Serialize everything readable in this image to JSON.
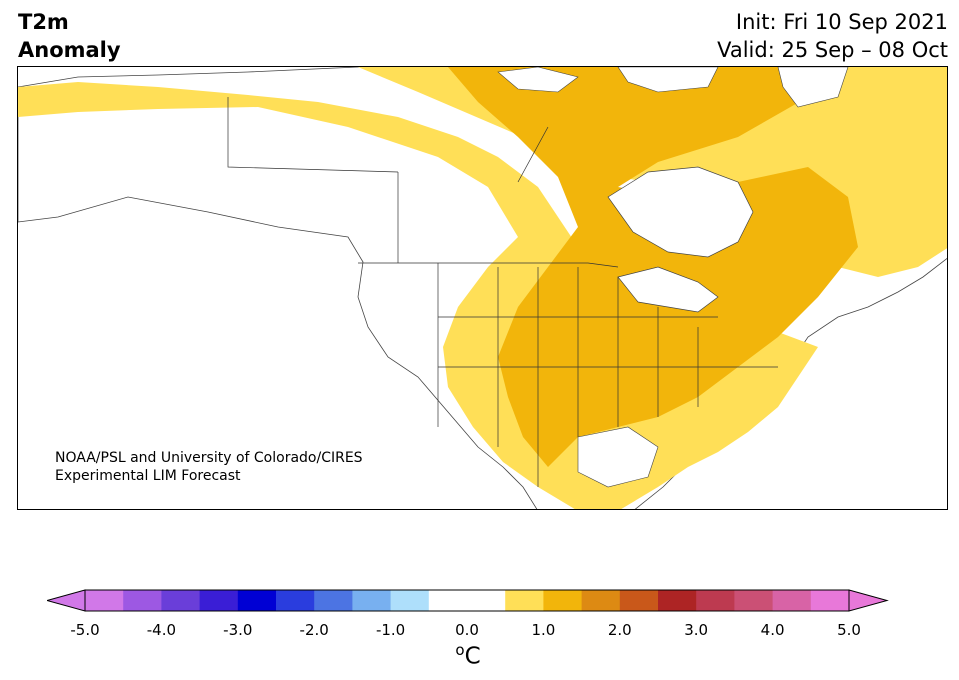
{
  "header": {
    "title_line1": "T2m",
    "title_line2": "Anomaly",
    "init_text": "Init: Fri 10 Sep 2021",
    "valid_text": "Valid: 25 Sep – 08 Oct"
  },
  "map": {
    "credit_line1": "NOAA/PSL and University of Colorado/CIRES",
    "credit_line2": "Experimental LIM Forecast",
    "anomaly_regions": [
      {
        "name": "light-warm-band",
        "level": "0.5 to 1.0",
        "color": "#ffdf57"
      },
      {
        "name": "warm-core",
        "level": "1.0 to 1.5",
        "color": "#f2b50b"
      }
    ]
  },
  "colorbar": {
    "unit_main": "C",
    "unit_super": "o",
    "ticks": [
      "-5.0",
      "-4.0",
      "-3.0",
      "-2.0",
      "-1.0",
      "0.0",
      "1.0",
      "2.0",
      "3.0",
      "4.0",
      "5.0"
    ],
    "under_color": "#d178e8",
    "over_color": "#e878d9",
    "colors": [
      "#d178e8",
      "#9d58e3",
      "#6a3ed9",
      "#3a1ed6",
      "#0000d4",
      "#2a3dde",
      "#4c74e3",
      "#78b0f0",
      "#aedffb",
      "#ffffff",
      "#ffffff",
      "#ffdf57",
      "#f2b50b",
      "#dd8a13",
      "#c9581a",
      "#ad2424",
      "#bd3a50",
      "#cb5075",
      "#d863a6",
      "#e878d9"
    ]
  }
}
